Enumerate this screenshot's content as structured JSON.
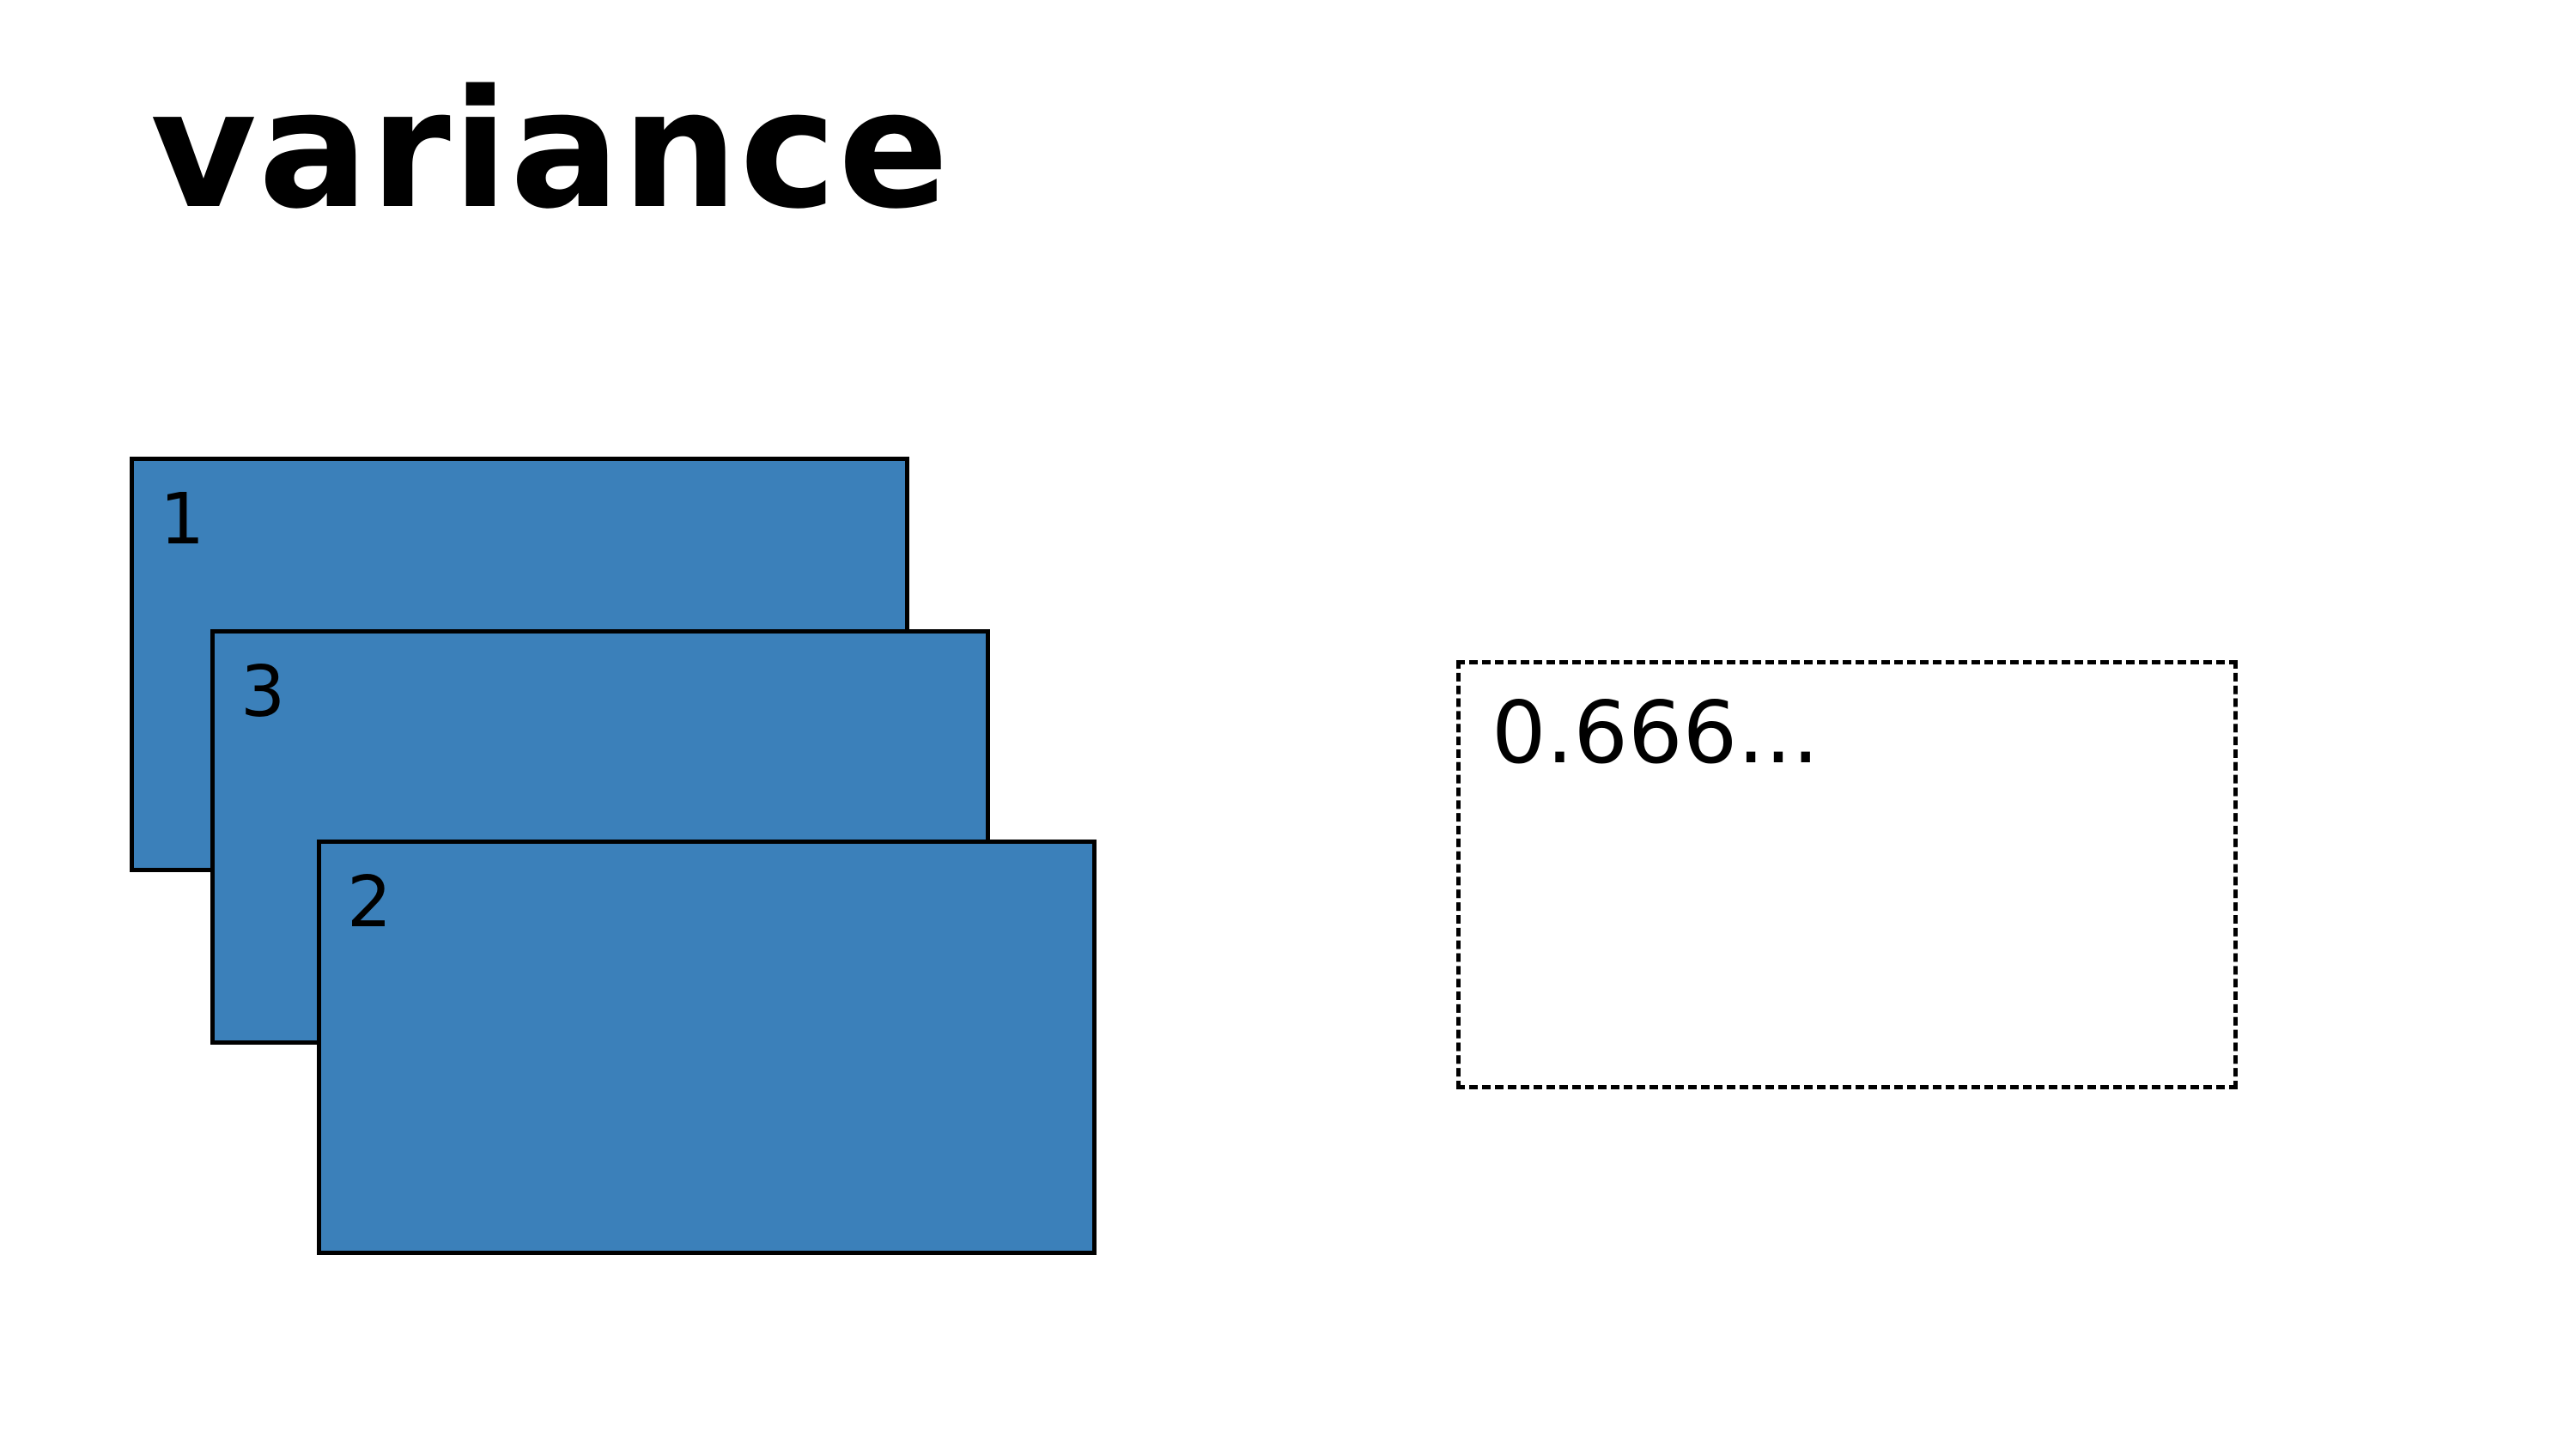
{
  "title": "variance",
  "cards": [
    {
      "label": "1"
    },
    {
      "label": "3"
    },
    {
      "label": "2"
    }
  ],
  "result": {
    "value": "0.666..."
  },
  "colors": {
    "card_fill": "#3b80ba",
    "border": "#000000",
    "background": "#ffffff"
  }
}
